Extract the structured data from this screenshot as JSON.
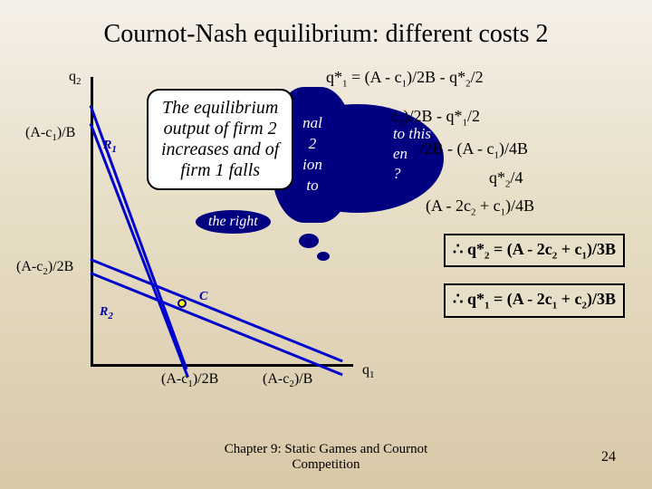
{
  "title": "Cournot-Nash equilibrium: different costs 2",
  "axes": {
    "y_label_html": "q<span class='sub'>2</span>",
    "x_label_html": "q<span class='sub'>1</span>",
    "y_tick1_html": "(A-c<span class='sub'>1</span>)/B",
    "y_tick2_html": "(A-c<span class='sub'>2</span>)/2B",
    "x_tick1_html": "(A-c<span class='sub'>1</span>)/2B",
    "x_tick2_html": "(A-c<span class='sub'>2</span>)/B"
  },
  "lines": {
    "R1_label_html": "R<span class='sub'>1</span>",
    "R2_label_html": "R<span class='sub'>2</span>",
    "C_label": "C",
    "line_color": "#0000cc"
  },
  "bubble": {
    "text": "What happens to this equilibrium when costs change?",
    "partial_right_html": "to this<br>en<br>?",
    "partial_mid_html": "nal<br>2<br>ion<br>to"
  },
  "callout": {
    "text_html": "The equilibrium<br>output of firm 2<br>increases and of<br>firm 1 falls"
  },
  "equations": {
    "rows": [
      "q*<span class='sub'>1</span> = (A - c<span class='sub'>1</span>)/2B - q*<span class='sub'>2</span>/2",
      "q*<span class='sub'>2</span> = (A - c<span class='sub'>2</span>)/2B - q*<span class='sub'>1</span>/2",
      "→ q*<span class='sub'>2</span> = (A - c<span class='sub'>2</span>)/2B - (A - c<span class='sub'>1</span>)/4B",
      "+ q*<span class='sub'>2</span>/4",
      "→ 3q*<span class='sub'>2</span>/4 = (A - 2c<span class='sub'>2</span> + c<span class='sub'>1</span>)/4B"
    ],
    "boxed1_html": "∴ q*<span class='sub'>2</span> = (A - 2c<span class='sub'>2</span> + c<span class='sub'>1</span>)/3B",
    "boxed2_html": "∴ q*<span class='sub'>1</span> = (A - 2c<span class='sub'>1</span> + c<span class='sub'>2</span>)/3B"
  },
  "footer": {
    "chapter": "Chapter 9: Static Games and Cournot Competition",
    "page": "24"
  },
  "colors": {
    "bg_top": "#f5f0e8",
    "bg_bottom": "#d8c8a8",
    "navy": "#000080",
    "line_blue": "#0000cc"
  }
}
